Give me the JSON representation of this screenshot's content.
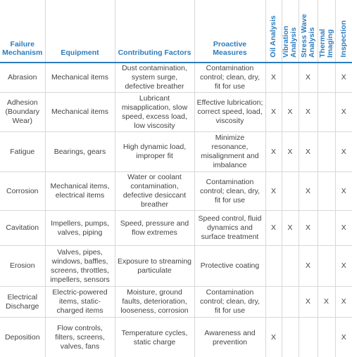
{
  "table": {
    "headers": [
      "Failure Mechanism",
      "Equipment",
      "Contributing Factors",
      "Proactive Measures",
      "Oil Analysis",
      "Vibration Analysis",
      "Stress Wave Analysis",
      "Thermal Imaging",
      "Inspection"
    ],
    "rows": [
      [
        "Abrasion",
        "Mechanical items",
        "Dust contamination, system surge, defective breather",
        "Contamination control; clean, dry, fit for use",
        "X",
        null,
        "X",
        null,
        "X"
      ],
      [
        "Adhesion (Boundary Wear)",
        "Mechanical items",
        "Lubricant misapplication, slow speed, excess load, low viscosity",
        "Effective lubrication; correct speed, load, viscosity",
        "X",
        "X",
        "X",
        null,
        "X"
      ],
      [
        "Fatigue",
        "Bearings, gears",
        "High dynamic load, improper fit",
        "Minimize resonance, misalignment and imbalance",
        "X",
        "X",
        "X",
        null,
        "X"
      ],
      [
        "Corrosion",
        "Mechanical items, electrical items",
        "Water or coolant contamination, defective desiccant breather",
        "Contamination control; clean, dry, fit for use",
        "X",
        null,
        "X",
        null,
        "X"
      ],
      [
        "Cavitation",
        "Impellers, pumps, valves, piping",
        "Speed, pressure and flow extremes",
        "Speed control, fluid dynamics and surface treatment",
        "X",
        "X",
        "X",
        null,
        "X"
      ],
      [
        "Erosion",
        "Valves, pipes, windows, baffles, screens, throttles, impellers, sensors",
        "Exposure to streaming particulate",
        "Protective coating",
        null,
        null,
        "X",
        null,
        "X"
      ],
      [
        "Electrical Discharge",
        "Electric-powered items, static-charged items",
        "Moisture, ground faults, deterioration, looseness, corrosion",
        "Contamination control; clean, dry, fit for use",
        null,
        null,
        "X",
        "X",
        "X"
      ],
      [
        "Deposition",
        "Flow controls, filters, screens, valves, fans",
        "Temperature cycles, static charge",
        "Awareness and prevention",
        "X",
        null,
        null,
        null,
        "X"
      ]
    ]
  }
}
